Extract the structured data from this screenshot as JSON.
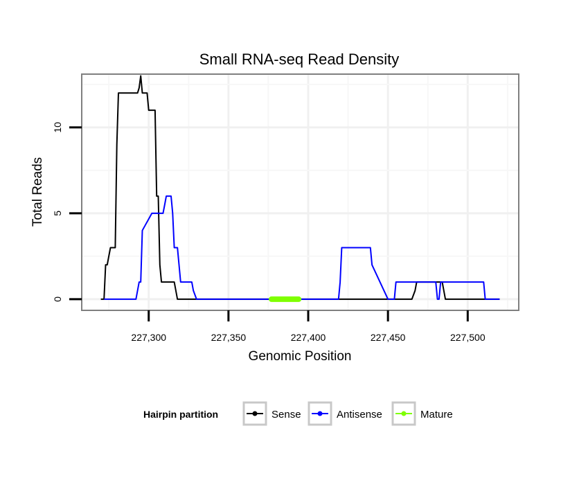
{
  "chart_data": {
    "type": "line",
    "title": "Small RNA-seq Read Density",
    "xlabel": "Genomic Position",
    "ylabel": "Total Reads",
    "xlim": [
      227258,
      227532
    ],
    "ylim": [
      -0.65,
      13.1
    ],
    "xticks": [
      227300,
      227350,
      227400,
      227450,
      227500
    ],
    "xtick_labels": [
      "227,300",
      "227,350",
      "227,400",
      "227,450",
      "227,500"
    ],
    "yticks": [
      0,
      5,
      10
    ],
    "ytick_labels": [
      "0",
      "5",
      "10"
    ],
    "grid": true,
    "legend_title": "Hairpin partition",
    "legend_position": "bottom",
    "series": [
      {
        "name": "Sense",
        "color": "#000000",
        "x": [
          227270,
          227272,
          227273,
          227274,
          227275,
          227276,
          227278,
          227279,
          227280,
          227281,
          227282,
          227293,
          227294,
          227295,
          227296,
          227298,
          227299,
          227300,
          227301,
          227303,
          227304,
          227305,
          227306,
          227307,
          227308,
          227309,
          227315,
          227316,
          227317,
          227318,
          227330,
          227340,
          227350,
          227360,
          227370,
          227380,
          227390,
          227400,
          227410,
          227420,
          227430,
          227440,
          227450,
          227460,
          227465,
          227467,
          227468,
          227469,
          227483,
          227484,
          227485,
          227486,
          227520
        ],
        "y": [
          0,
          0,
          2,
          2,
          2.5,
          3,
          3,
          3,
          9,
          12,
          12,
          12,
          12.3,
          13,
          12,
          12,
          12,
          11,
          11,
          11,
          11,
          6,
          6,
          2,
          1,
          1,
          1,
          1,
          0.5,
          0,
          0,
          0,
          0,
          0,
          0,
          0,
          0,
          0,
          0,
          0,
          0,
          0,
          0,
          0,
          0,
          0.5,
          1,
          1,
          1,
          1,
          0.5,
          0,
          0
        ]
      },
      {
        "name": "Antisense",
        "color": "#0000ff",
        "x": [
          227272,
          227280,
          227290,
          227292,
          227293,
          227294,
          227295,
          227296,
          227302,
          227303,
          227304,
          227305,
          227309,
          227310,
          227311,
          227314,
          227315,
          227316,
          227317,
          227318,
          227319,
          227320,
          227327,
          227328,
          227330,
          227340,
          227350,
          227360,
          227370,
          227380,
          227390,
          227400,
          227410,
          227418,
          227419,
          227420,
          227421,
          227437,
          227438,
          227439,
          227440,
          227450,
          227453,
          227454,
          227455,
          227478,
          227479,
          227480,
          227481,
          227482,
          227483,
          227509,
          227510,
          227511,
          227520
        ],
        "y": [
          0,
          0,
          0,
          0,
          0.5,
          1,
          1,
          4,
          5,
          5,
          5,
          5,
          5,
          5.5,
          6,
          6,
          5,
          3,
          3,
          3,
          2,
          1,
          1,
          0.5,
          0,
          0,
          0,
          0,
          0,
          0,
          0,
          0,
          0,
          0,
          0,
          1,
          3,
          3,
          3,
          3,
          2,
          0,
          0,
          0,
          1,
          1,
          1,
          1,
          0,
          0,
          1,
          1,
          1,
          0,
          0
        ]
      },
      {
        "name": "Mature",
        "color": "#7fff00",
        "x": [
          227377,
          227394
        ],
        "y": [
          0,
          0
        ]
      }
    ]
  }
}
